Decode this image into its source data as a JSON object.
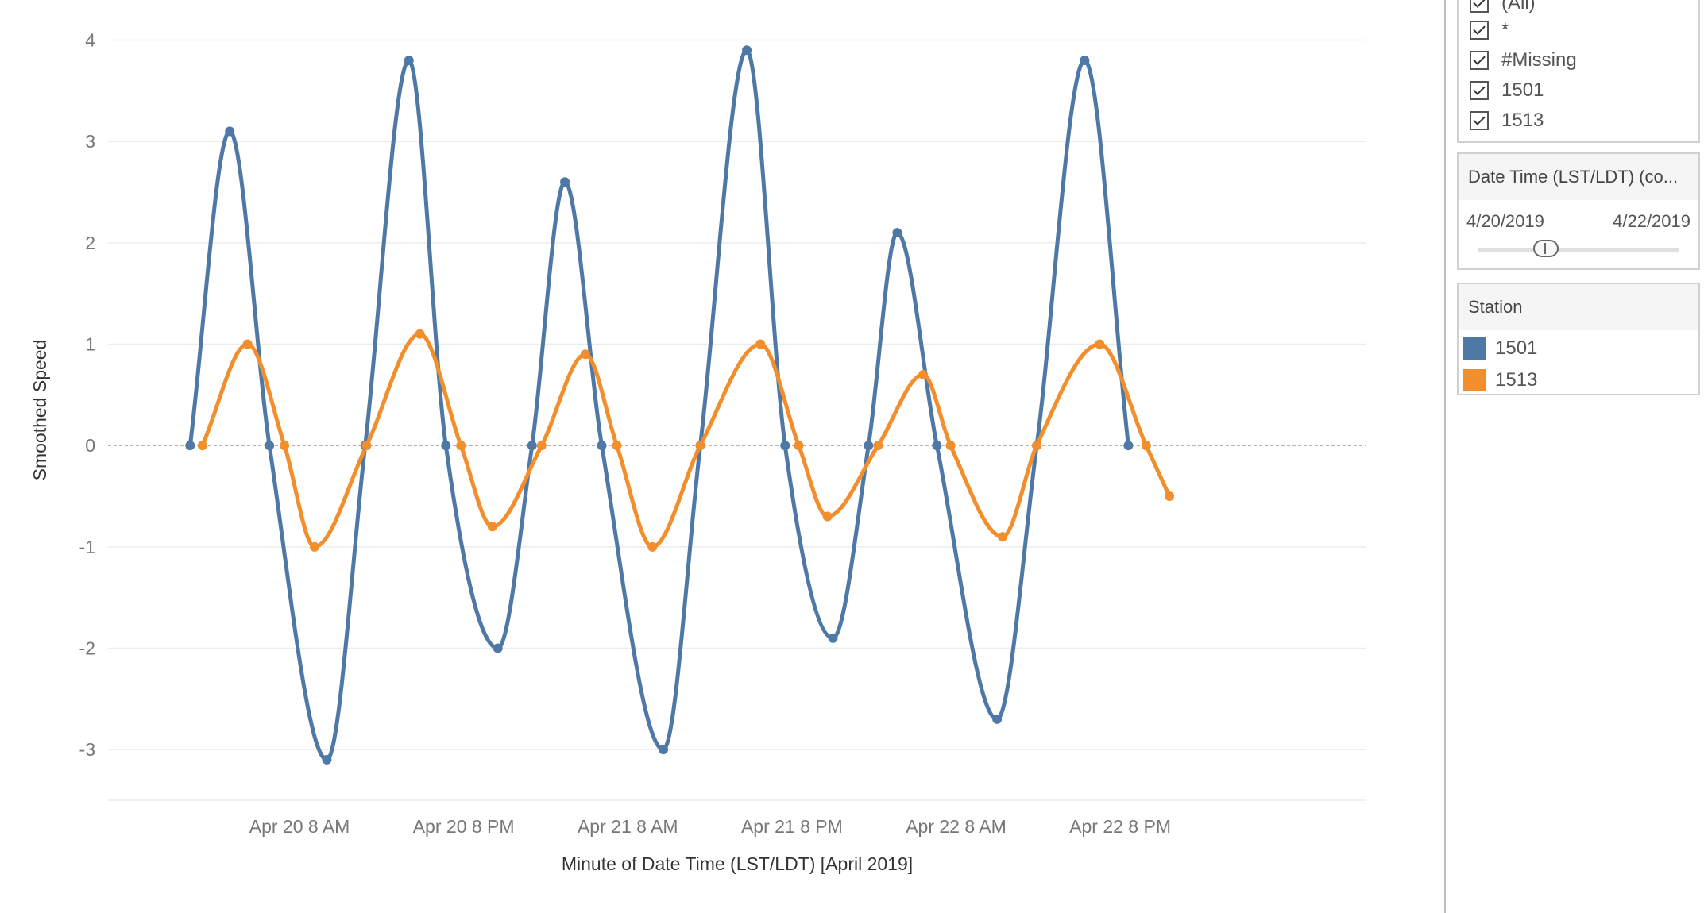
{
  "chart_data": {
    "type": "line",
    "xlabel": "Minute of Date Time (LST/LDT) [April 2019]",
    "ylabel": "Smoothed Speed",
    "ylim": [
      -3.5,
      4.2
    ],
    "xlim": [
      -6,
      86
    ],
    "yticks": [
      4,
      3,
      2,
      1,
      0,
      -1,
      -2,
      -3
    ],
    "x_units": "hours since Apr 20 12 AM",
    "xticks": [
      {
        "x": 8,
        "label": "Apr 20 8 AM"
      },
      {
        "x": 20,
        "label": "Apr 20 8 PM"
      },
      {
        "x": 32,
        "label": "Apr 21 8 AM"
      },
      {
        "x": 44,
        "label": "Apr 21 8 PM"
      },
      {
        "x": 56,
        "label": "Apr 22 8 AM"
      },
      {
        "x": 68,
        "label": "Apr 22 8 PM"
      }
    ],
    "zero_line": true,
    "series": [
      {
        "name": "1501",
        "color": "#4e79a7",
        "points": [
          [
            0.0,
            0.0
          ],
          [
            2.9,
            3.1
          ],
          [
            5.8,
            0.0
          ],
          [
            10.0,
            -3.1
          ],
          [
            12.8,
            0.0
          ],
          [
            16.0,
            3.8
          ],
          [
            18.7,
            0.0
          ],
          [
            22.5,
            -2.0
          ],
          [
            25.0,
            0.0
          ],
          [
            27.4,
            2.6
          ],
          [
            30.1,
            0.0
          ],
          [
            34.6,
            -3.0
          ],
          [
            37.3,
            0.0
          ],
          [
            40.7,
            3.9
          ],
          [
            43.5,
            0.0
          ],
          [
            47.0,
            -1.9
          ],
          [
            49.6,
            0.0
          ],
          [
            51.7,
            2.1
          ],
          [
            54.6,
            0.0
          ],
          [
            59.0,
            -2.7
          ],
          [
            61.9,
            0.0
          ],
          [
            65.4,
            3.8
          ],
          [
            68.6,
            0.0
          ]
        ]
      },
      {
        "name": "1513",
        "color": "#f28e2b",
        "points": [
          [
            0.9,
            0.0
          ],
          [
            4.2,
            1.0
          ],
          [
            6.9,
            0.0
          ],
          [
            9.1,
            -1.0
          ],
          [
            12.9,
            0.0
          ],
          [
            16.8,
            1.1
          ],
          [
            19.8,
            0.0
          ],
          [
            22.1,
            -0.8
          ],
          [
            25.7,
            0.0
          ],
          [
            28.9,
            0.9
          ],
          [
            31.2,
            0.0
          ],
          [
            33.8,
            -1.0
          ],
          [
            37.3,
            0.0
          ],
          [
            41.7,
            1.0
          ],
          [
            44.5,
            0.0
          ],
          [
            46.6,
            -0.7
          ],
          [
            50.3,
            0.0
          ],
          [
            53.6,
            0.7
          ],
          [
            55.6,
            0.0
          ],
          [
            59.4,
            -0.9
          ],
          [
            61.9,
            0.0
          ],
          [
            66.5,
            1.0
          ],
          [
            69.9,
            0.0
          ],
          [
            71.6,
            -0.5
          ]
        ]
      }
    ]
  },
  "filter": {
    "items": [
      "(All)",
      "*",
      "#Missing",
      "1501",
      "1513"
    ]
  },
  "date_filter": {
    "title": "Date Time (LST/LDT) (co...",
    "start": "4/20/2019",
    "end": "4/22/2019"
  },
  "legend": {
    "title": "Station",
    "items": [
      {
        "label": "1501",
        "color": "#4e79a7"
      },
      {
        "label": "1513",
        "color": "#f28e2b"
      }
    ]
  }
}
